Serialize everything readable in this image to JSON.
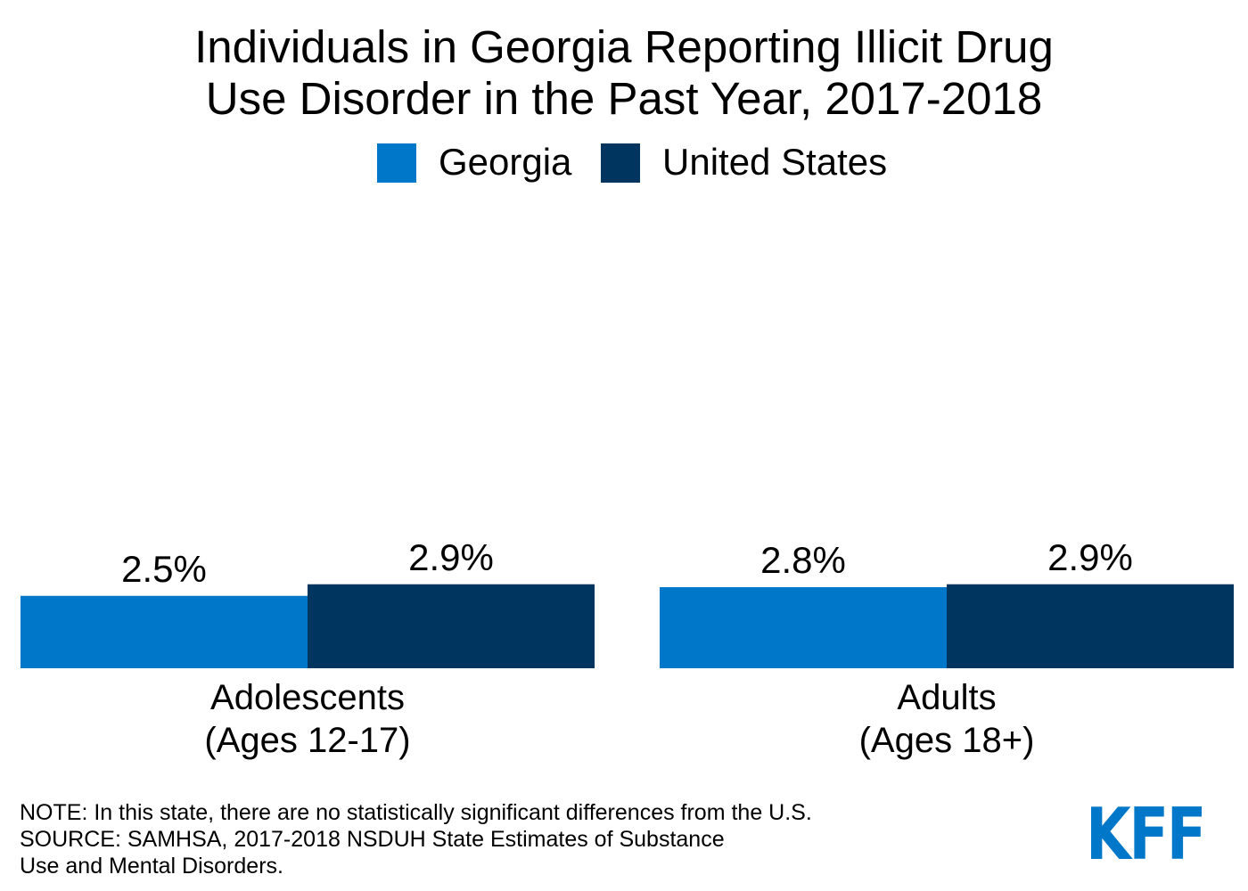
{
  "title": {
    "line1": "Individuals in Georgia Reporting Illicit Drug",
    "line2": "Use Disorder in the Past Year, 2017-2018"
  },
  "chart_data": {
    "type": "bar",
    "title": "Individuals in Georgia Reporting Illicit Drug Use Disorder in the Past Year, 2017-2018",
    "categories": [
      [
        "Adolescents",
        "(Ages 12-17)"
      ],
      [
        "Adults",
        "(Ages 18+)"
      ]
    ],
    "series": [
      {
        "name": "Georgia",
        "color": "#0077c8",
        "values": [
          2.5,
          2.8
        ],
        "labels": [
          "2.5%",
          "2.8%"
        ]
      },
      {
        "name": "United States",
        "color": "#003560",
        "values": [
          2.9,
          2.9
        ],
        "labels": [
          "2.9%",
          "2.9%"
        ]
      }
    ],
    "unit": "%",
    "xlabel": "",
    "ylabel": "",
    "ylim": [
      0,
      3.2
    ],
    "grid": false,
    "legend": "top-center"
  },
  "note": {
    "line1": "NOTE: In this state, there are no statistically significant differences from the U.S.",
    "line2": "SOURCE: SAMHSA, 2017-2018 NSDUH State Estimates of Substance",
    "line3": "Use and Mental Disorders."
  },
  "logo": {
    "text": "KFF",
    "color": "#0077c8"
  }
}
